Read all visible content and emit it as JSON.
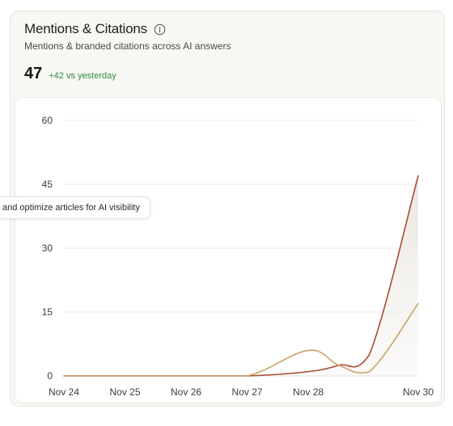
{
  "card": {
    "title": "Mentions & Citations",
    "subtitle": "Mentions & branded citations across AI answers",
    "metric_value": "47",
    "metric_delta": "+42 vs yesterday",
    "info_icon": "info-circle-icon"
  },
  "tooltip": {
    "text": "and optimize articles for AI visibility"
  },
  "colors": {
    "series_primary": "#a84b32",
    "series_secondary": "#c9a26c",
    "delta_positive": "#2f8a44"
  },
  "chart_data": {
    "type": "line",
    "x": [
      "Nov 24",
      "Nov 25",
      "Nov 26",
      "Nov 27",
      "Nov 28",
      "Nov 30"
    ],
    "x_values": [
      0,
      1,
      2,
      3,
      4,
      5.8
    ],
    "y_ticks": [
      0,
      15,
      30,
      45,
      60
    ],
    "ylim": [
      0,
      60
    ],
    "grid": true,
    "series": [
      {
        "color": "#a84b32",
        "area_fill": true,
        "points": [
          [
            0,
            0
          ],
          [
            1,
            0
          ],
          [
            2,
            0
          ],
          [
            3,
            0
          ],
          [
            4,
            1
          ],
          [
            4.5,
            2.5
          ],
          [
            5,
            5
          ],
          [
            5.8,
            47
          ]
        ]
      },
      {
        "color": "#c9a26c",
        "area_fill": false,
        "points": [
          [
            0,
            0
          ],
          [
            1,
            0
          ],
          [
            2,
            0
          ],
          [
            3,
            0
          ],
          [
            4,
            6
          ],
          [
            4.5,
            2.5
          ],
          [
            5,
            1
          ],
          [
            5.8,
            17
          ]
        ]
      }
    ]
  }
}
